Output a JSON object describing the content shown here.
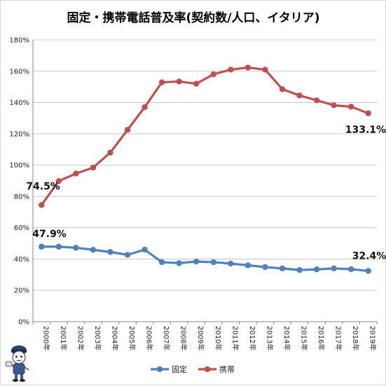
{
  "chart_data": {
    "type": "line",
    "title": "固定・携帯電話普及率(契約数/人口、イタリア)",
    "categories": [
      "2000年",
      "2001年",
      "2002年",
      "2003年",
      "2004年",
      "2005年",
      "2006年",
      "2007年",
      "2008年",
      "2009年",
      "2010年",
      "2011年",
      "2012年",
      "2013年",
      "2014年",
      "2015年",
      "2016年",
      "2017年",
      "2018年",
      "2019年"
    ],
    "yticks": [
      "0%",
      "20%",
      "40%",
      "60%",
      "80%",
      "100%",
      "120%",
      "140%",
      "160%",
      "180%"
    ],
    "ylim": [
      0,
      180
    ],
    "grid": true,
    "legend_position": "bottom",
    "series": [
      {
        "name": "固定",
        "color": "#4f81bd",
        "values": [
          47.9,
          47.9,
          47.2,
          45.9,
          44.5,
          42.7,
          46.0,
          38.0,
          37.4,
          38.4,
          38.0,
          37.1,
          36.0,
          34.9,
          34.0,
          33.0,
          33.4,
          34.0,
          33.5,
          32.4
        ]
      },
      {
        "name": "携帯",
        "color": "#c0504d",
        "values": [
          74.5,
          89.8,
          94.6,
          98.4,
          108.0,
          122.5,
          137.0,
          152.9,
          153.4,
          152.0,
          158.0,
          161.0,
          162.3,
          161.0,
          148.5,
          144.5,
          141.4,
          138.2,
          137.3,
          133.1
        ]
      }
    ],
    "data_labels": [
      {
        "series": 1,
        "index": 0,
        "text": "74.5%"
      },
      {
        "series": 1,
        "index": 19,
        "text": "133.1%"
      },
      {
        "series": 0,
        "index": 0,
        "text": "47.9%"
      },
      {
        "series": 0,
        "index": 19,
        "text": "32.4%"
      }
    ]
  }
}
